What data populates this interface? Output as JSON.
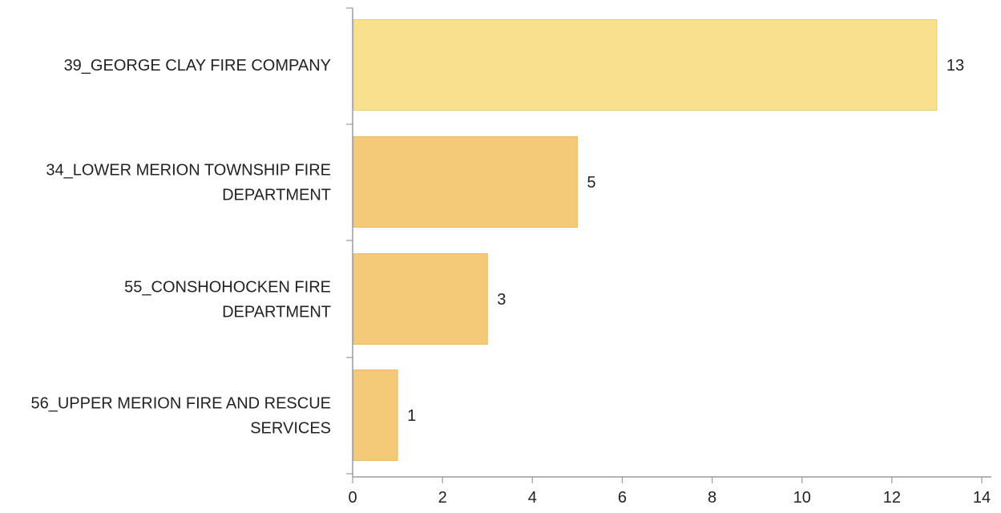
{
  "chart_data": {
    "type": "bar",
    "orientation": "horizontal",
    "categories": [
      "39_GEORGE CLAY FIRE COMPANY",
      "34_LOWER MERION TOWNSHIP FIRE DEPARTMENT",
      "55_CONSHOHOCKEN FIRE DEPARTMENT",
      "56_UPPER MERION FIRE AND RESCUE SERVICES"
    ],
    "category_lines": [
      [
        "39_GEORGE CLAY FIRE COMPANY"
      ],
      [
        "34_LOWER MERION TOWNSHIP FIRE",
        "DEPARTMENT"
      ],
      [
        "55_CONSHOHOCKEN FIRE",
        "DEPARTMENT"
      ],
      [
        "56_UPPER MERION FIRE AND RESCUE",
        "SERVICES"
      ]
    ],
    "values": [
      13,
      5,
      3,
      1
    ],
    "value_labels": [
      "13",
      "5",
      "3",
      "1"
    ],
    "xlim": [
      0,
      14
    ],
    "xticks": [
      0,
      2,
      4,
      6,
      8,
      10,
      12,
      14
    ],
    "xtick_labels": [
      "0",
      "2",
      "4",
      "6",
      "8",
      "10",
      "12",
      "14"
    ],
    "title": "",
    "xlabel": "",
    "ylabel": "",
    "grid": false,
    "legend": "none",
    "bar_colors": [
      "#f8e08e",
      "#f4c978",
      "#f4c978",
      "#f4c978"
    ],
    "bar_edge_colors": [
      "#e9cf72",
      "#e8b95f",
      "#e8b95f",
      "#e8b95f"
    ],
    "axis_color": "#9a9aa6"
  }
}
